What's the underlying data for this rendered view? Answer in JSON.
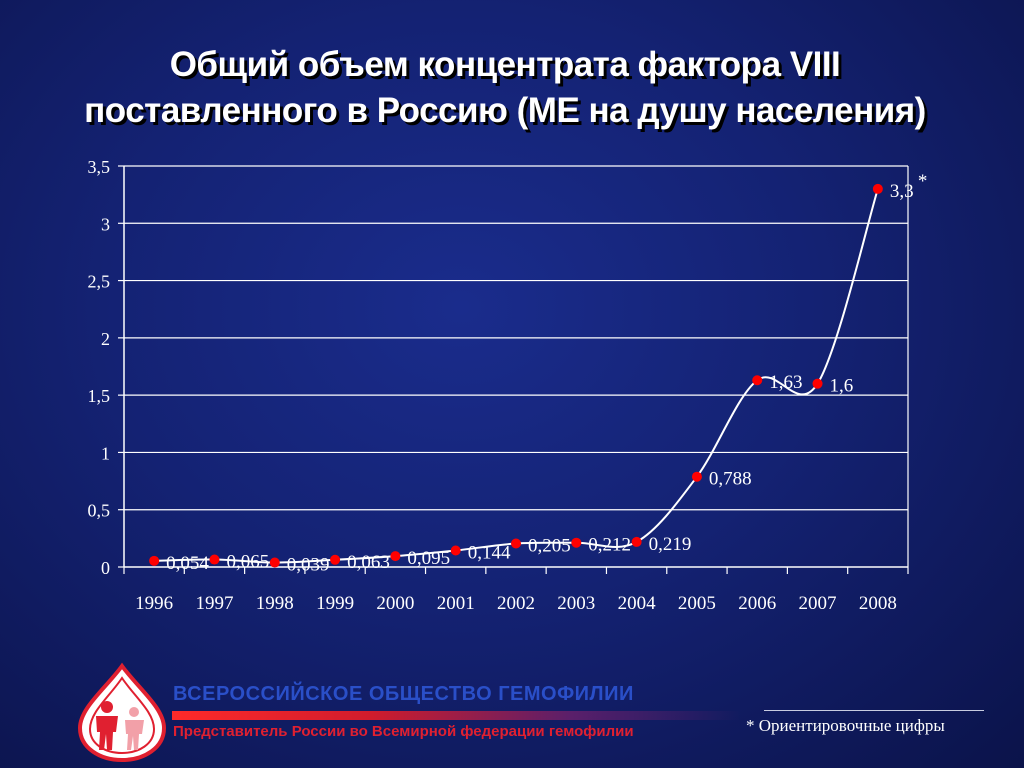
{
  "title": {
    "line1": "Общий объем концентрата фактора VIII",
    "line2": "поставленного в Россию (МЕ на душу населения)"
  },
  "chart_data": {
    "type": "line",
    "categories": [
      "1996",
      "1997",
      "1998",
      "1999",
      "2000",
      "2001",
      "2002",
      "2003",
      "2004",
      "2005",
      "2006",
      "2007",
      "2008"
    ],
    "values": [
      0.054,
      0.065,
      0.039,
      0.063,
      0.095,
      0.144,
      0.205,
      0.212,
      0.219,
      0.788,
      1.63,
      1.6,
      3.3
    ],
    "data_labels": [
      "0,054",
      "0,065",
      "0,039",
      "0,063",
      "0,095",
      "0,144",
      "0,205",
      "0,212",
      "0,219",
      "0,788",
      "1,63",
      "1,6",
      "3,3"
    ],
    "annotation": "*",
    "annotated_category": "2008",
    "ylim": [
      0,
      3.5
    ],
    "yticks": [
      "0",
      "0,5",
      "1",
      "1,5",
      "2",
      "2,5",
      "3",
      "3,5"
    ],
    "grid": true,
    "line_color": "#ffffff",
    "marker_color": "#ff0000"
  },
  "footer": {
    "org_name": "ВСЕРОССИЙСКОЕ ОБЩЕСТВО ГЕМОФИЛИИ",
    "org_subtitle": "Представитель России во Всемирной федерации гемофилии",
    "note_star": "*",
    "note_text": "Ориентировочные цифры"
  },
  "colors": {
    "background": "#142273",
    "org_blue": "#2a4fc8",
    "org_red": "#e02030"
  }
}
